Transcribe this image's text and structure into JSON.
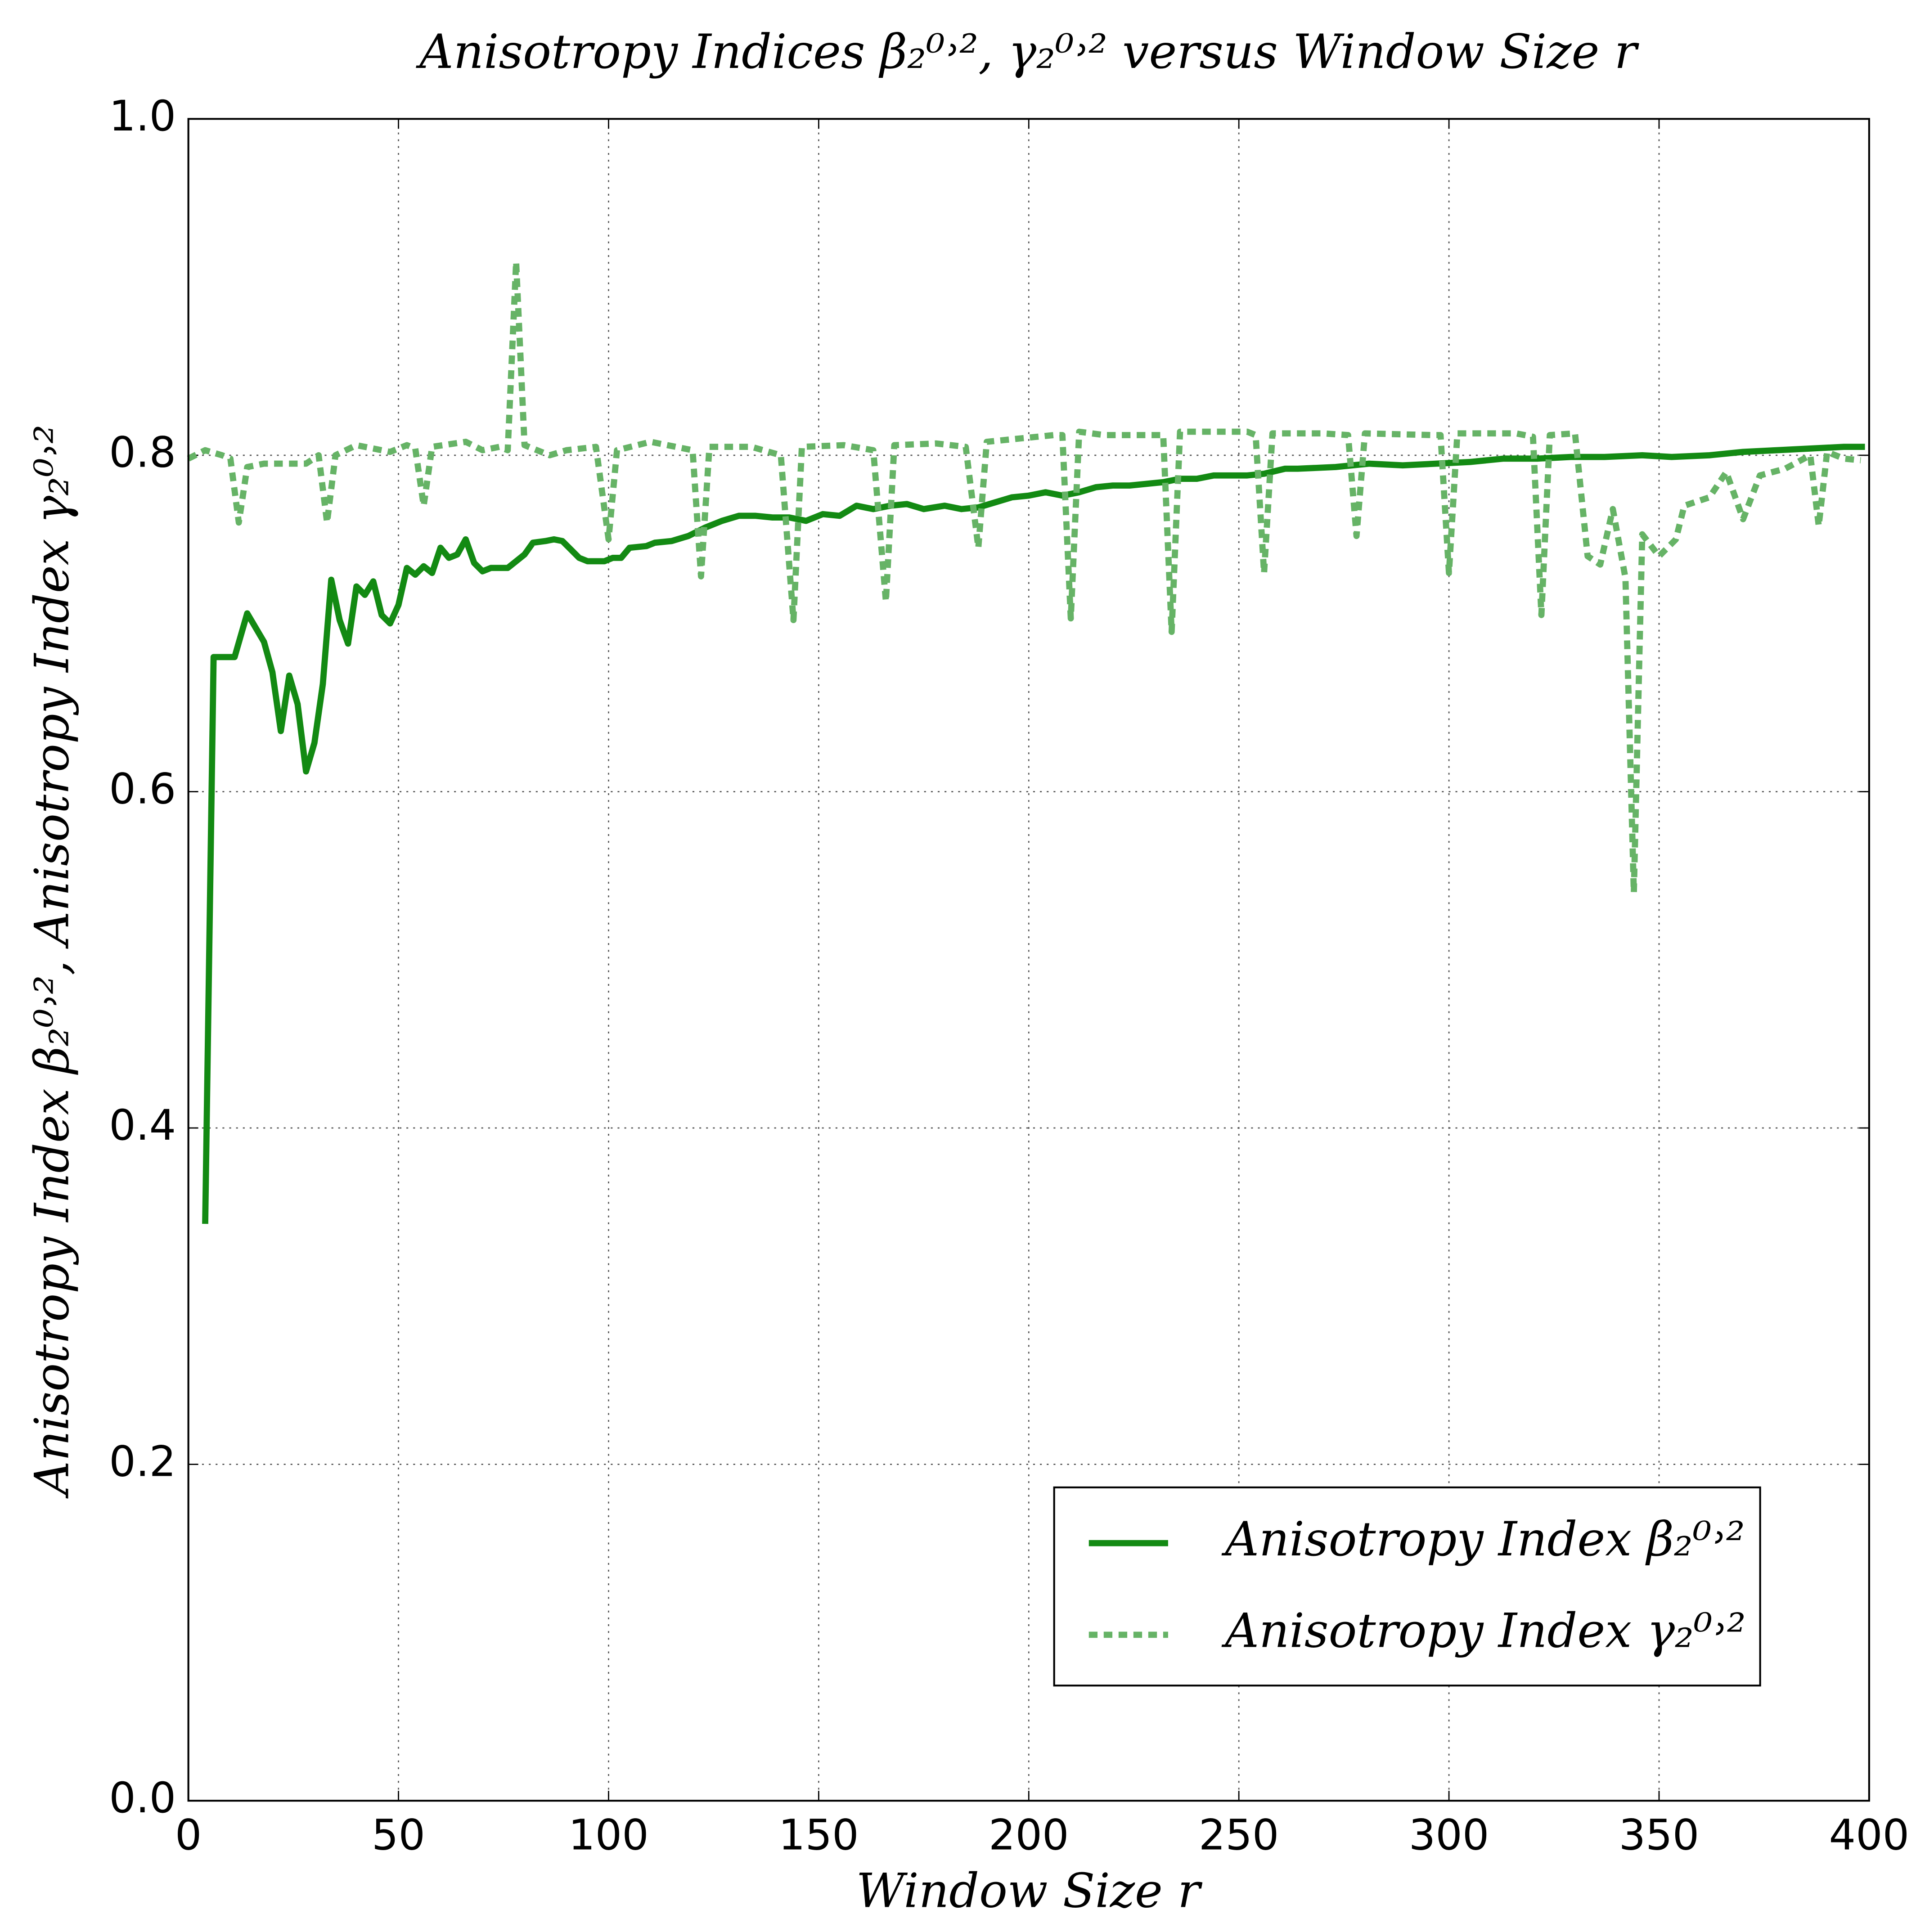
{
  "chart_data": {
    "type": "line",
    "title": "Anisotropy Indices β₂⁰˒², γ₂⁰˒² versus Window Size r",
    "x_label": "Window Size r",
    "y_label": "Anisotropy Index β₂⁰˒², Anisotropy Index γ₂⁰˒²",
    "xlim": [
      0,
      400
    ],
    "ylim": [
      0,
      1
    ],
    "xticks": [
      0,
      50,
      100,
      150,
      200,
      250,
      300,
      350,
      400
    ],
    "yticks": [
      {
        "value": 0,
        "label": "0.0"
      },
      0.2,
      0.4,
      0.6,
      0.8,
      {
        "value": 1,
        "label": "1.0"
      }
    ],
    "grid": true,
    "legend": "lower right",
    "series": [
      {
        "name": "Anisotropy Index β₂⁰˒²",
        "color": "#138a13",
        "style": "solid",
        "x": [
          4,
          6,
          11,
          14,
          18,
          20,
          22,
          24,
          26,
          28,
          30,
          32,
          34,
          36,
          38,
          40,
          42,
          44,
          46,
          48,
          50,
          52,
          54,
          56,
          58,
          60,
          62,
          64,
          66,
          68,
          70,
          72,
          76,
          78,
          80,
          82,
          85,
          87,
          89,
          91,
          93,
          95,
          99,
          101,
          103,
          105,
          109,
          111,
          115,
          119,
          123,
          127,
          131,
          135,
          139,
          143,
          147,
          151,
          155,
          159,
          163,
          167,
          171,
          175,
          180,
          184,
          188,
          192,
          196,
          200,
          204,
          208,
          212,
          216,
          220,
          224,
          228,
          232,
          236,
          240,
          244,
          252,
          256,
          261,
          264,
          273,
          281,
          289,
          297,
          305,
          313,
          321,
          329,
          337,
          346,
          353,
          362,
          370,
          378,
          386,
          394,
          399
        ],
        "values": [
          0.343,
          0.68,
          0.68,
          0.706,
          0.689,
          0.671,
          0.636,
          0.669,
          0.652,
          0.612,
          0.629,
          0.664,
          0.726,
          0.702,
          0.688,
          0.722,
          0.717,
          0.725,
          0.705,
          0.7,
          0.711,
          0.733,
          0.729,
          0.734,
          0.73,
          0.745,
          0.739,
          0.741,
          0.75,
          0.736,
          0.731,
          0.733,
          0.733,
          0.737,
          0.741,
          0.748,
          0.749,
          0.75,
          0.749,
          0.744,
          0.739,
          0.737,
          0.737,
          0.739,
          0.739,
          0.745,
          0.746,
          0.748,
          0.749,
          0.752,
          0.757,
          0.761,
          0.764,
          0.764,
          0.763,
          0.763,
          0.761,
          0.765,
          0.764,
          0.77,
          0.768,
          0.77,
          0.771,
          0.768,
          0.77,
          0.768,
          0.769,
          0.772,
          0.775,
          0.776,
          0.778,
          0.776,
          0.778,
          0.781,
          0.782,
          0.782,
          0.783,
          0.784,
          0.786,
          0.786,
          0.788,
          0.788,
          0.789,
          0.792,
          0.792,
          0.793,
          0.795,
          0.794,
          0.795,
          0.796,
          0.798,
          0.798,
          0.799,
          0.799,
          0.8,
          0.799,
          0.8,
          0.802,
          0.803,
          0.804,
          0.805,
          0.805
        ]
      },
      {
        "name": "Anisotropy Index γ₂⁰˒²",
        "color": "#66b366",
        "style": "dashed",
        "x": [
          0,
          4,
          8,
          10,
          12,
          14,
          18,
          24,
          28,
          31,
          33,
          35,
          40,
          48,
          52,
          54,
          56,
          58,
          66,
          70,
          74,
          76,
          78,
          80,
          86,
          90,
          97,
          100,
          102,
          110,
          118,
          120,
          122,
          124,
          134,
          141,
          144,
          146,
          156,
          163,
          166,
          168,
          178,
          185,
          188,
          190,
          198,
          206,
          208,
          210,
          212,
          218,
          230,
          232,
          234,
          236,
          252,
          254,
          256,
          258,
          270,
          276,
          278,
          280,
          296,
          298,
          300,
          302,
          316,
          320,
          322,
          324,
          330,
          333,
          336,
          339,
          342,
          344,
          346,
          350,
          354,
          356,
          362,
          366,
          370,
          374,
          380,
          386,
          388,
          390,
          394,
          398
        ],
        "values": [
          0.798,
          0.803,
          0.8,
          0.798,
          0.76,
          0.793,
          0.795,
          0.795,
          0.795,
          0.8,
          0.76,
          0.8,
          0.806,
          0.802,
          0.806,
          0.804,
          0.77,
          0.805,
          0.808,
          0.803,
          0.805,
          0.803,
          0.915,
          0.806,
          0.8,
          0.803,
          0.805,
          0.75,
          0.803,
          0.808,
          0.804,
          0.803,
          0.728,
          0.805,
          0.805,
          0.8,
          0.702,
          0.805,
          0.806,
          0.803,
          0.713,
          0.806,
          0.807,
          0.805,
          0.745,
          0.808,
          0.81,
          0.812,
          0.812,
          0.703,
          0.814,
          0.812,
          0.812,
          0.812,
          0.695,
          0.814,
          0.814,
          0.812,
          0.73,
          0.813,
          0.813,
          0.812,
          0.752,
          0.813,
          0.812,
          0.812,
          0.73,
          0.813,
          0.813,
          0.811,
          0.705,
          0.812,
          0.813,
          0.74,
          0.735,
          0.768,
          0.727,
          0.54,
          0.753,
          0.74,
          0.75,
          0.77,
          0.775,
          0.79,
          0.762,
          0.788,
          0.792,
          0.8,
          0.758,
          0.802,
          0.798,
          0.797
        ]
      }
    ]
  }
}
